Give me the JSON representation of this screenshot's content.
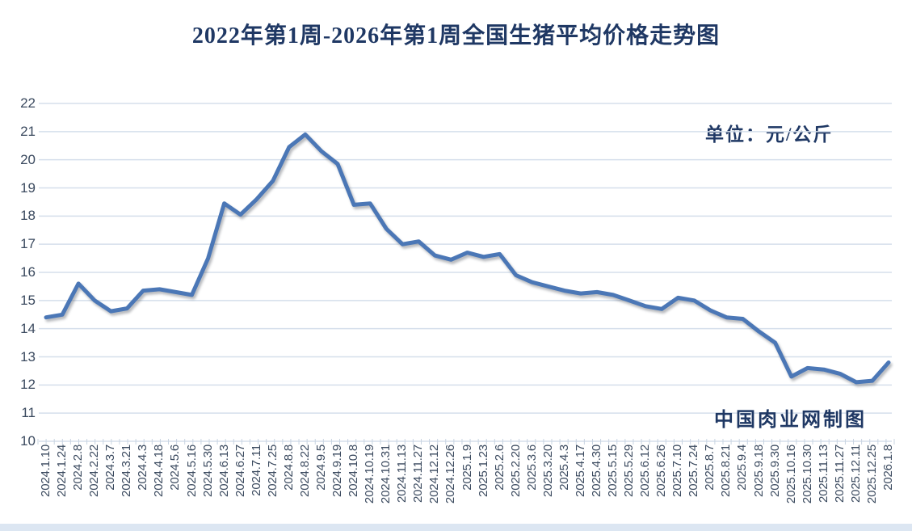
{
  "title": {
    "text": "2022年第1周-2026年第1周全国生猪平均价格走势图"
  },
  "annotations": {
    "unit": "单位：元/公斤",
    "credit": "中国肉业网制图"
  },
  "colors": {
    "title": "#1f3864",
    "axis_label": "#3b4a5f",
    "line": "#4b77b6",
    "gridline": "#d5dfeb",
    "tick": "#c9d4e2",
    "bottom_strip": "#dce6f2",
    "background": "#ffffff"
  },
  "chart_data": {
    "type": "line",
    "title": "2022年第1周-2026年第1周全国生猪平均价格走势图",
    "unit": "元/公斤",
    "xlabel": "",
    "ylabel": "",
    "ylim": [
      10,
      22
    ],
    "ytick_step": 1,
    "yticks": [
      10,
      11,
      12,
      13,
      14,
      15,
      16,
      17,
      18,
      19,
      20,
      21,
      22
    ],
    "grid": true,
    "legend": "none",
    "x_tick_label_rotation": 90,
    "categories": [
      "2024.1.10",
      "2024.1.24",
      "2024.2.8",
      "2024.2.22",
      "2024.3.7",
      "2024.3.21",
      "2024.4.3",
      "2024.4.18",
      "2024.5.6",
      "2024.5.16",
      "2024.5.30",
      "2024.6.13",
      "2024.6.27",
      "2024.7.11",
      "2024.7.25",
      "2024.8.8",
      "2024.8.22",
      "2024.9.5",
      "2024.9.19",
      "2024.10.8",
      "2024.10.19",
      "2024.10.31",
      "2024.11.13",
      "2024.11.27",
      "2024.12.12",
      "2024.12.26",
      "2025.1.9",
      "2025.1.23",
      "2025.2.6",
      "2025.2.20",
      "2025.3.6",
      "2025.3.20",
      "2025.4.3",
      "2025.4.17",
      "2025.4.30",
      "2025.5.15",
      "2025.5.29",
      "2025.6.12",
      "2025.6.26",
      "2025.7.10",
      "2025.7.24",
      "2025.8.7",
      "2025.8.21",
      "2025.9.4",
      "2025.9.18",
      "2025.9.30",
      "2025.10.16",
      "2025.10.30",
      "2025.11.13",
      "2025.11.27",
      "2025.12.11",
      "2025.12.25",
      "2026.1.8"
    ],
    "values": [
      14.4,
      14.5,
      15.6,
      15.0,
      14.62,
      14.72,
      15.35,
      15.4,
      15.3,
      15.2,
      16.5,
      18.45,
      18.05,
      18.6,
      19.25,
      20.45,
      20.9,
      20.3,
      19.85,
      18.4,
      18.45,
      17.55,
      17.0,
      17.1,
      16.6,
      16.45,
      16.7,
      16.55,
      16.65,
      15.9,
      15.65,
      15.5,
      15.35,
      15.25,
      15.3,
      15.2,
      15.0,
      14.8,
      14.7,
      15.1,
      15.0,
      14.65,
      14.4,
      14.35,
      13.9,
      13.5,
      12.3,
      12.6,
      12.55,
      12.4,
      12.1,
      12.15,
      12.8
    ]
  }
}
